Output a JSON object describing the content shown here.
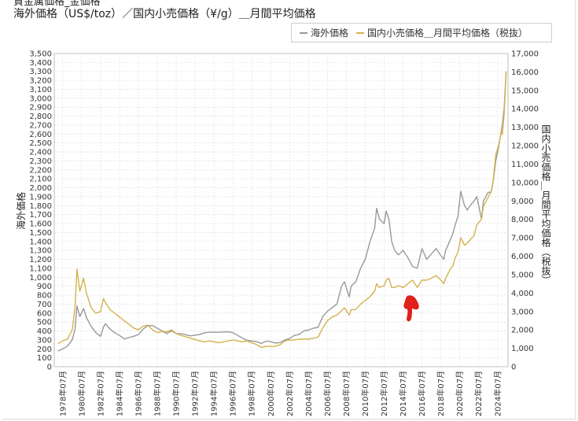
{
  "header": {
    "top_cut_text": "貴金属価格_金価格",
    "title": "海外価格（US$/toz）／国内小売価格（¥/g）＿月間平均価格"
  },
  "colors": {
    "series1": "#999999",
    "series2": "#d4b24c",
    "grid": "#d8d8d8",
    "annotation": "#e0201b"
  },
  "chart_data": {
    "type": "line",
    "title": "海外価格（US$/toz）／国内小売価格（¥/g）＿月間平均価格",
    "xlabel": "",
    "ylabel": "海外価格",
    "y2label": "国内小売価格＿月間平均価格（税抜）",
    "ylim": [
      0,
      3500
    ],
    "y2lim": [
      0,
      17000
    ],
    "grid": true,
    "legend_position": "top-right",
    "x_tick_labels": [
      "1978年07月",
      "1980年07月",
      "1982年07月",
      "1984年07月",
      "1986年07月",
      "1988年07月",
      "1990年07月",
      "1992年07月",
      "1994年07月",
      "1996年07月",
      "1998年07月",
      "2000年07月",
      "2002年07月",
      "2004年07月",
      "2006年07月",
      "2008年07月",
      "2010年07月",
      "2012年07月",
      "2014年07月",
      "2016年07月",
      "2018年07月",
      "2020年07月",
      "2022年07月",
      "2024年07月"
    ],
    "y_ticks": [
      0,
      100,
      200,
      300,
      400,
      500,
      600,
      700,
      800,
      900,
      1000,
      1100,
      1200,
      1300,
      1400,
      1500,
      1600,
      1700,
      1800,
      1900,
      2000,
      2100,
      2200,
      2300,
      2400,
      2500,
      2600,
      2700,
      2800,
      2900,
      3000,
      3100,
      3200,
      3300,
      3400,
      3500
    ],
    "y_tick_labels": [
      "0",
      "100",
      "200",
      "300",
      "400",
      "500",
      "600",
      "700",
      "800",
      "900",
      "1,000",
      "1,100",
      "1,200",
      "1,300",
      "1,400",
      "1,500",
      "1,600",
      "1,700",
      "1,800",
      "1,900",
      "2,000",
      "2,100",
      "2,200",
      "2,300",
      "2,400",
      "2,500",
      "2,600",
      "2,700",
      "2,800",
      "2,900",
      "3,000",
      "3,100",
      "3,200",
      "3,300",
      "3,400",
      "3,500"
    ],
    "y2_ticks": [
      0,
      1000,
      2000,
      3000,
      4000,
      5000,
      6000,
      7000,
      8000,
      9000,
      10000,
      11000,
      12000,
      13000,
      14000,
      15000,
      16000,
      17000
    ],
    "y2_tick_labels": [
      "0",
      "1,000",
      "2,000",
      "3,000",
      "4,000",
      "5,000",
      "6,000",
      "7,000",
      "8,000",
      "9,000",
      "10,000",
      "11,000",
      "12,000",
      "13,000",
      "14,000",
      "15,000",
      "16,000",
      "17,000"
    ],
    "series": [
      {
        "name": "海外価格",
        "axis": "left",
        "points": [
          [
            1978.0,
            175
          ],
          [
            1978.5,
            200
          ],
          [
            1979.0,
            230
          ],
          [
            1979.5,
            300
          ],
          [
            1979.8,
            420
          ],
          [
            1980.0,
            680
          ],
          [
            1980.3,
            560
          ],
          [
            1980.7,
            650
          ],
          [
            1981.0,
            550
          ],
          [
            1981.5,
            450
          ],
          [
            1982.0,
            380
          ],
          [
            1982.5,
            340
          ],
          [
            1982.8,
            440
          ],
          [
            1983.0,
            480
          ],
          [
            1983.5,
            420
          ],
          [
            1984.0,
            380
          ],
          [
            1984.5,
            350
          ],
          [
            1985.0,
            310
          ],
          [
            1985.5,
            325
          ],
          [
            1986.0,
            340
          ],
          [
            1986.5,
            360
          ],
          [
            1987.0,
            420
          ],
          [
            1987.5,
            460
          ],
          [
            1988.0,
            460
          ],
          [
            1988.5,
            430
          ],
          [
            1989.0,
            400
          ],
          [
            1989.5,
            370
          ],
          [
            1990.0,
            400
          ],
          [
            1990.5,
            370
          ],
          [
            1991.0,
            370
          ],
          [
            1992.0,
            345
          ],
          [
            1993.0,
            360
          ],
          [
            1993.5,
            380
          ],
          [
            1994.0,
            385
          ],
          [
            1995.0,
            385
          ],
          [
            1996.0,
            390
          ],
          [
            1996.5,
            380
          ],
          [
            1997.0,
            350
          ],
          [
            1997.5,
            320
          ],
          [
            1998.0,
            295
          ],
          [
            1999.0,
            280
          ],
          [
            1999.5,
            260
          ],
          [
            2000.0,
            285
          ],
          [
            2000.5,
            280
          ],
          [
            2001.0,
            265
          ],
          [
            2001.5,
            270
          ],
          [
            2002.0,
            300
          ],
          [
            2002.5,
            315
          ],
          [
            2003.0,
            350
          ],
          [
            2003.5,
            360
          ],
          [
            2004.0,
            400
          ],
          [
            2004.5,
            410
          ],
          [
            2005.0,
            430
          ],
          [
            2005.5,
            440
          ],
          [
            2006.0,
            560
          ],
          [
            2006.5,
            620
          ],
          [
            2007.0,
            660
          ],
          [
            2007.5,
            700
          ],
          [
            2008.0,
            900
          ],
          [
            2008.3,
            950
          ],
          [
            2008.8,
            780
          ],
          [
            2009.0,
            900
          ],
          [
            2009.5,
            950
          ],
          [
            2010.0,
            1100
          ],
          [
            2010.5,
            1200
          ],
          [
            2011.0,
            1400
          ],
          [
            2011.5,
            1550
          ],
          [
            2011.7,
            1770
          ],
          [
            2012.0,
            1650
          ],
          [
            2012.5,
            1600
          ],
          [
            2012.7,
            1740
          ],
          [
            2013.0,
            1650
          ],
          [
            2013.3,
            1400
          ],
          [
            2013.6,
            1300
          ],
          [
            2014.0,
            1250
          ],
          [
            2014.5,
            1300
          ],
          [
            2015.0,
            1220
          ],
          [
            2015.5,
            1120
          ],
          [
            2016.0,
            1100
          ],
          [
            2016.5,
            1320
          ],
          [
            2017.0,
            1200
          ],
          [
            2017.5,
            1260
          ],
          [
            2018.0,
            1320
          ],
          [
            2018.5,
            1240
          ],
          [
            2018.8,
            1200
          ],
          [
            2019.0,
            1300
          ],
          [
            2019.5,
            1420
          ],
          [
            2019.8,
            1500
          ],
          [
            2020.0,
            1580
          ],
          [
            2020.3,
            1680
          ],
          [
            2020.6,
            1960
          ],
          [
            2021.0,
            1800
          ],
          [
            2021.3,
            1750
          ],
          [
            2021.6,
            1800
          ],
          [
            2022.0,
            1850
          ],
          [
            2022.3,
            1900
          ],
          [
            2022.8,
            1650
          ],
          [
            2023.0,
            1850
          ],
          [
            2023.5,
            1950
          ],
          [
            2023.8,
            1950
          ],
          [
            2024.0,
            2050
          ],
          [
            2024.3,
            2300
          ],
          [
            2024.6,
            2450
          ],
          [
            2024.9,
            2650
          ],
          [
            2025.0,
            2700
          ],
          [
            2025.2,
            2900
          ],
          [
            2025.4,
            3300
          ]
        ]
      },
      {
        "name": "国内小売価格＿月間平均価格（税抜）",
        "axis": "right",
        "points": [
          [
            1978.0,
            1250
          ],
          [
            1978.5,
            1400
          ],
          [
            1979.0,
            1500
          ],
          [
            1979.5,
            2000
          ],
          [
            1979.8,
            3200
          ],
          [
            1980.0,
            5300
          ],
          [
            1980.3,
            4100
          ],
          [
            1980.7,
            4800
          ],
          [
            1981.0,
            4000
          ],
          [
            1981.5,
            3200
          ],
          [
            1982.0,
            2900
          ],
          [
            1982.5,
            3000
          ],
          [
            1982.8,
            3700
          ],
          [
            1983.0,
            3500
          ],
          [
            1983.5,
            3100
          ],
          [
            1984.0,
            2900
          ],
          [
            1984.5,
            2700
          ],
          [
            1985.0,
            2500
          ],
          [
            1985.5,
            2300
          ],
          [
            1986.0,
            2100
          ],
          [
            1986.5,
            2000
          ],
          [
            1987.0,
            2200
          ],
          [
            1987.5,
            2250
          ],
          [
            1988.0,
            2000
          ],
          [
            1988.5,
            1850
          ],
          [
            1989.0,
            1900
          ],
          [
            1989.5,
            1900
          ],
          [
            1990.0,
            2000
          ],
          [
            1990.5,
            1800
          ],
          [
            1991.0,
            1700
          ],
          [
            1992.0,
            1550
          ],
          [
            1993.0,
            1400
          ],
          [
            1993.5,
            1350
          ],
          [
            1994.0,
            1400
          ],
          [
            1995.0,
            1300
          ],
          [
            1996.0,
            1400
          ],
          [
            1996.5,
            1450
          ],
          [
            1997.0,
            1400
          ],
          [
            1997.5,
            1350
          ],
          [
            1998.0,
            1400
          ],
          [
            1999.0,
            1200
          ],
          [
            1999.5,
            1050
          ],
          [
            2000.0,
            1100
          ],
          [
            2000.5,
            1100
          ],
          [
            2001.0,
            1100
          ],
          [
            2001.5,
            1200
          ],
          [
            2002.0,
            1400
          ],
          [
            2002.5,
            1450
          ],
          [
            2003.0,
            1450
          ],
          [
            2003.5,
            1500
          ],
          [
            2004.0,
            1500
          ],
          [
            2004.5,
            1500
          ],
          [
            2005.0,
            1550
          ],
          [
            2005.5,
            1600
          ],
          [
            2006.0,
            2100
          ],
          [
            2006.5,
            2500
          ],
          [
            2007.0,
            2700
          ],
          [
            2007.5,
            2800
          ],
          [
            2008.0,
            3050
          ],
          [
            2008.3,
            3200
          ],
          [
            2008.8,
            2800
          ],
          [
            2009.0,
            3100
          ],
          [
            2009.5,
            3100
          ],
          [
            2010.0,
            3400
          ],
          [
            2010.5,
            3600
          ],
          [
            2011.0,
            3800
          ],
          [
            2011.5,
            4100
          ],
          [
            2011.7,
            4500
          ],
          [
            2012.0,
            4300
          ],
          [
            2012.5,
            4400
          ],
          [
            2012.7,
            4700
          ],
          [
            2013.0,
            4800
          ],
          [
            2013.3,
            4300
          ],
          [
            2013.6,
            4300
          ],
          [
            2014.0,
            4400
          ],
          [
            2014.5,
            4300
          ],
          [
            2015.0,
            4500
          ],
          [
            2015.5,
            4700
          ],
          [
            2016.0,
            4300
          ],
          [
            2016.5,
            4700
          ],
          [
            2017.0,
            4700
          ],
          [
            2017.5,
            4800
          ],
          [
            2018.0,
            4950
          ],
          [
            2018.5,
            4700
          ],
          [
            2018.8,
            4500
          ],
          [
            2019.0,
            4800
          ],
          [
            2019.5,
            5300
          ],
          [
            2019.8,
            5500
          ],
          [
            2020.0,
            5900
          ],
          [
            2020.3,
            6200
          ],
          [
            2020.6,
            7000
          ],
          [
            2021.0,
            6600
          ],
          [
            2021.3,
            6700
          ],
          [
            2021.6,
            6900
          ],
          [
            2022.0,
            7100
          ],
          [
            2022.3,
            7700
          ],
          [
            2022.8,
            8000
          ],
          [
            2023.0,
            8700
          ],
          [
            2023.5,
            9200
          ],
          [
            2023.8,
            9500
          ],
          [
            2024.0,
            10000
          ],
          [
            2024.3,
            11500
          ],
          [
            2024.6,
            12000
          ],
          [
            2024.9,
            12800
          ],
          [
            2025.0,
            12600
          ],
          [
            2025.2,
            13800
          ],
          [
            2025.4,
            16000
          ]
        ]
      }
    ]
  }
}
